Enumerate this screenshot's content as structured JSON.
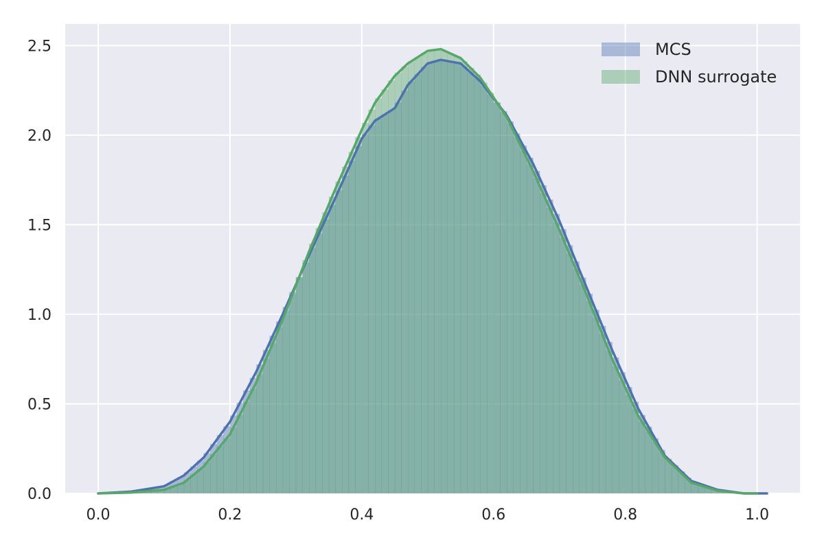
{
  "chart_data": {
    "type": "area",
    "title": "",
    "xlabel": "",
    "ylabel": "",
    "xlim": [
      -0.05,
      1.065
    ],
    "ylim": [
      0.0,
      2.62
    ],
    "xticks": [
      "0.0",
      "0.2",
      "0.4",
      "0.6",
      "0.8",
      "1.0"
    ],
    "yticks": [
      "0.0",
      "0.5",
      "1.0",
      "1.5",
      "2.0",
      "2.5"
    ],
    "grid": true,
    "legend_position": "top-right",
    "series": [
      {
        "name": "MCS",
        "color": "#4c72b0",
        "fill_color": "#4c72b0",
        "x": [
          0.0,
          0.05,
          0.1,
          0.13,
          0.16,
          0.2,
          0.24,
          0.28,
          0.32,
          0.36,
          0.4,
          0.42,
          0.45,
          0.47,
          0.5,
          0.52,
          0.55,
          0.58,
          0.62,
          0.66,
          0.7,
          0.74,
          0.78,
          0.82,
          0.86,
          0.9,
          0.94,
          0.98,
          1.0,
          1.015
        ],
        "y": [
          0.0,
          0.01,
          0.04,
          0.1,
          0.2,
          0.4,
          0.68,
          1.0,
          1.33,
          1.65,
          1.98,
          2.08,
          2.15,
          2.28,
          2.4,
          2.42,
          2.4,
          2.3,
          2.11,
          1.84,
          1.52,
          1.16,
          0.8,
          0.47,
          0.21,
          0.07,
          0.02,
          0.0,
          0.0,
          0.0
        ]
      },
      {
        "name": "DNN surrogate",
        "color": "#55a868",
        "fill_color": "#55a868",
        "x": [
          0.0,
          0.05,
          0.1,
          0.13,
          0.16,
          0.2,
          0.24,
          0.28,
          0.32,
          0.36,
          0.4,
          0.42,
          0.45,
          0.47,
          0.5,
          0.52,
          0.55,
          0.58,
          0.62,
          0.66,
          0.7,
          0.74,
          0.78,
          0.82,
          0.86,
          0.9,
          0.94,
          0.98,
          1.0
        ],
        "y": [
          0.0,
          0.005,
          0.02,
          0.06,
          0.15,
          0.33,
          0.62,
          0.97,
          1.35,
          1.7,
          2.03,
          2.18,
          2.33,
          2.4,
          2.47,
          2.48,
          2.43,
          2.32,
          2.1,
          1.8,
          1.47,
          1.12,
          0.75,
          0.43,
          0.2,
          0.06,
          0.015,
          0.0,
          0.0
        ]
      }
    ]
  }
}
